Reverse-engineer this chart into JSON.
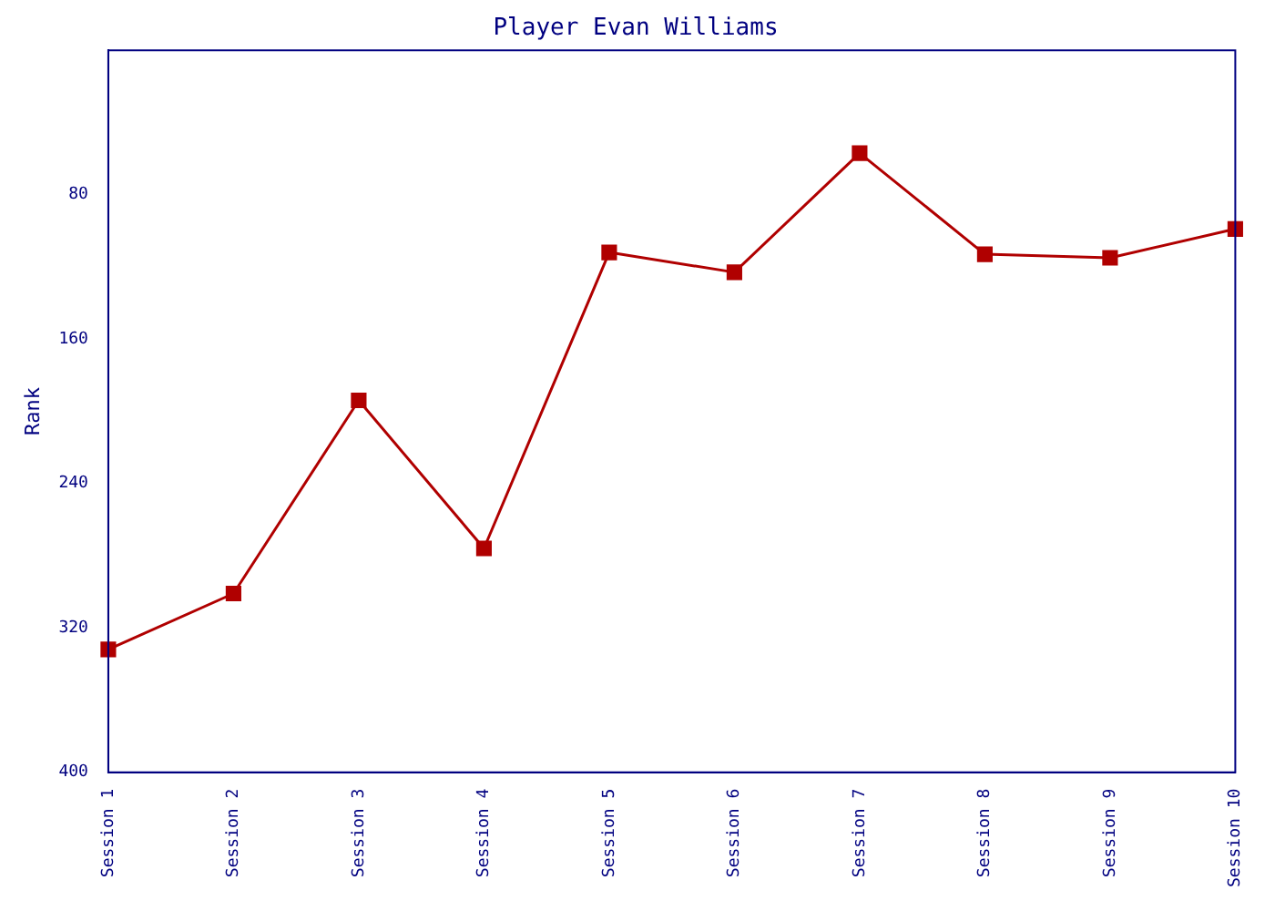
{
  "chart_data": {
    "type": "line",
    "title": "Player Evan Williams",
    "ylabel": "Rank",
    "categories": [
      "Session 1",
      "Session 2",
      "Session 3",
      "Session 4",
      "Session 5",
      "Session 6",
      "Session 7",
      "Session 8",
      "Session 9",
      "Session 10"
    ],
    "series": [
      {
        "color": "#b00000",
        "values": [
          332,
          301,
          194,
          276,
          112,
          123,
          57,
          113,
          115,
          99
        ]
      }
    ],
    "ylim": [
      400,
      0
    ],
    "yticks": [
      80,
      160,
      240,
      320,
      400
    ],
    "grid": false,
    "legend": false,
    "marker": "square",
    "line_style": "solid"
  }
}
